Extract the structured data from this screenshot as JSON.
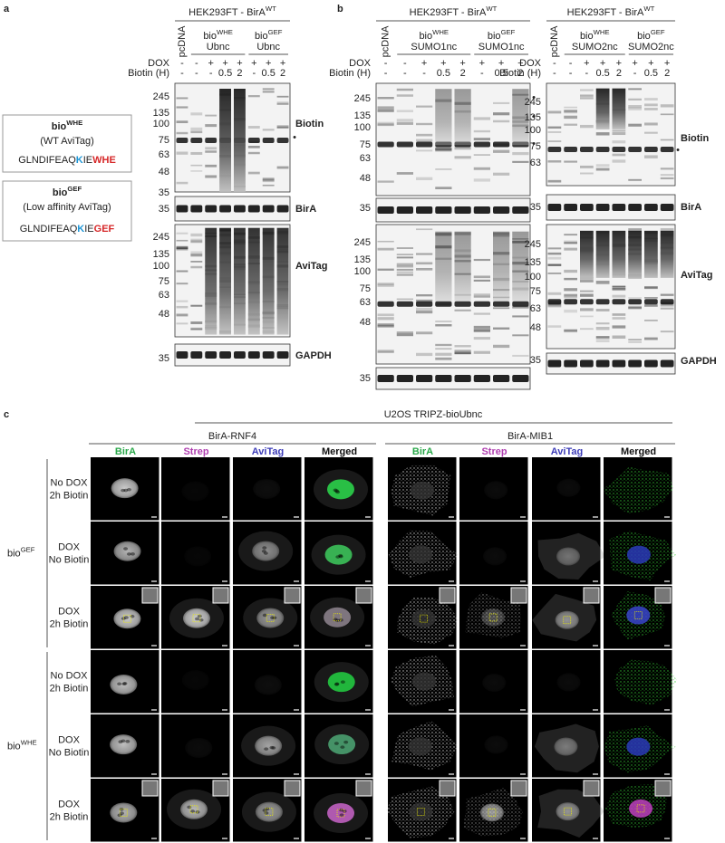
{
  "panel_a": {
    "letter": "a",
    "gel": {
      "header": {
        "base": "HEK293FT - BirA",
        "sup": "WT"
      },
      "control": "pcDNA",
      "groups": [
        {
          "base": "bio",
          "sup": "WHE",
          "name": "Ubnc"
        },
        {
          "base": "bio",
          "sup": "GEF",
          "name": "Ubnc"
        }
      ],
      "dox_label": "DOX",
      "biotin_label": "Biotin (H)",
      "dox": [
        "-",
        "-",
        "+",
        "+",
        "+",
        "+",
        "+",
        "+"
      ],
      "biotin": [
        "-",
        "-",
        "-",
        0.5,
        2,
        "-",
        0.5,
        2
      ],
      "blots": [
        {
          "label": "Biotin",
          "markers": [
            245,
            135,
            100,
            75,
            63,
            48,
            35
          ],
          "marks": [
            "•"
          ]
        },
        {
          "label": "BirA",
          "markers": [
            35
          ]
        },
        {
          "label": "AviTag",
          "markers": [
            245,
            135,
            100,
            75,
            63,
            48
          ]
        },
        {
          "label": "GAPDH",
          "markers": [
            35
          ]
        }
      ]
    },
    "constructs": [
      {
        "base": "bio",
        "sup": "WHE",
        "description": "(WT AviTag)",
        "sequence": [
          "GLNDIFEAQ",
          "K",
          "IE",
          "WHE"
        ]
      },
      {
        "base": "bio",
        "sup": "GEF",
        "description": "(Low affinity AviTag)",
        "sequence": [
          "GLNDIFEAQ",
          "K",
          "IE",
          "GEF"
        ]
      }
    ]
  },
  "panel_b": {
    "letter": "b",
    "gels": [
      {
        "header": {
          "base": "HEK293FT - BirA",
          "sup": "WT"
        },
        "control": "pcDNA",
        "groups": [
          {
            "base": "bio",
            "sup": "WHE",
            "name": "SUMO1nc"
          },
          {
            "base": "bio",
            "sup": "GEF",
            "name": "SUMO1nc"
          }
        ],
        "dox_label": "DOX",
        "biotin_label": "Biotin (H)",
        "dox": [
          "-",
          "-",
          "+",
          "+",
          "+",
          "+",
          "+",
          "+"
        ],
        "biotin": [
          "-",
          "-",
          "-",
          0.5,
          2,
          "-",
          0.5,
          2
        ],
        "blots": [
          {
            "markers": [
              245,
              135,
              100,
              75,
              63,
              48
            ],
            "marks": [
              "•",
              "•",
              "•"
            ]
          },
          {
            "markers": [
              35
            ]
          },
          {
            "markers": [
              245,
              135,
              100,
              75,
              63,
              48
            ]
          },
          {
            "markers": [
              35
            ]
          }
        ]
      },
      {
        "header": {
          "base": "HEK293FT - BirA",
          "sup": "WT"
        },
        "control": "pcDNA",
        "groups": [
          {
            "base": "bio",
            "sup": "WHE",
            "name": "SUMO2nc"
          },
          {
            "base": "bio",
            "sup": "GEF",
            "name": "SUMO2nc"
          }
        ],
        "dox_label": "DOX",
        "biotin_label": "Biotin (H)",
        "dox": [
          "-",
          "-",
          "+",
          "+",
          "+",
          "+",
          "+",
          "+"
        ],
        "biotin": [
          "-",
          "-",
          "-",
          0.5,
          2,
          "-",
          0.5,
          2
        ],
        "blots": [
          {
            "label": "Biotin",
            "markers": [
              245,
              135,
              100,
              75,
              63
            ],
            "marks": [
              "•"
            ]
          },
          {
            "label": "BirA",
            "markers": [
              35
            ]
          },
          {
            "label": "AviTag",
            "markers": [
              245,
              135,
              100,
              75,
              63,
              48
            ]
          },
          {
            "label": "GAPDH",
            "markers": [
              35
            ]
          }
        ]
      }
    ]
  },
  "panel_c": {
    "letter": "c",
    "title": "U2OS TRIPZ-bioUbnc",
    "groups": [
      {
        "name": "BirA-RNF4",
        "channels": [
          "BirA",
          "Strep",
          "AviTag",
          "Merged"
        ]
      },
      {
        "name": "BirA-MIB1",
        "channels": [
          "BirA",
          "Strep",
          "AviTag",
          "Merged"
        ]
      }
    ],
    "conditions": [
      {
        "base": "bio",
        "sup": "GEF",
        "rows": [
          [
            "No DOX",
            "2h Biotin"
          ],
          [
            "DOX",
            "No Biotin"
          ],
          [
            "DOX",
            "2h Biotin"
          ]
        ]
      },
      {
        "base": "bio",
        "sup": "WHE",
        "rows": [
          [
            "No DOX",
            "2h Biotin"
          ],
          [
            "DOX",
            "No Biotin"
          ],
          [
            "DOX",
            "2h Biotin"
          ]
        ]
      }
    ]
  }
}
